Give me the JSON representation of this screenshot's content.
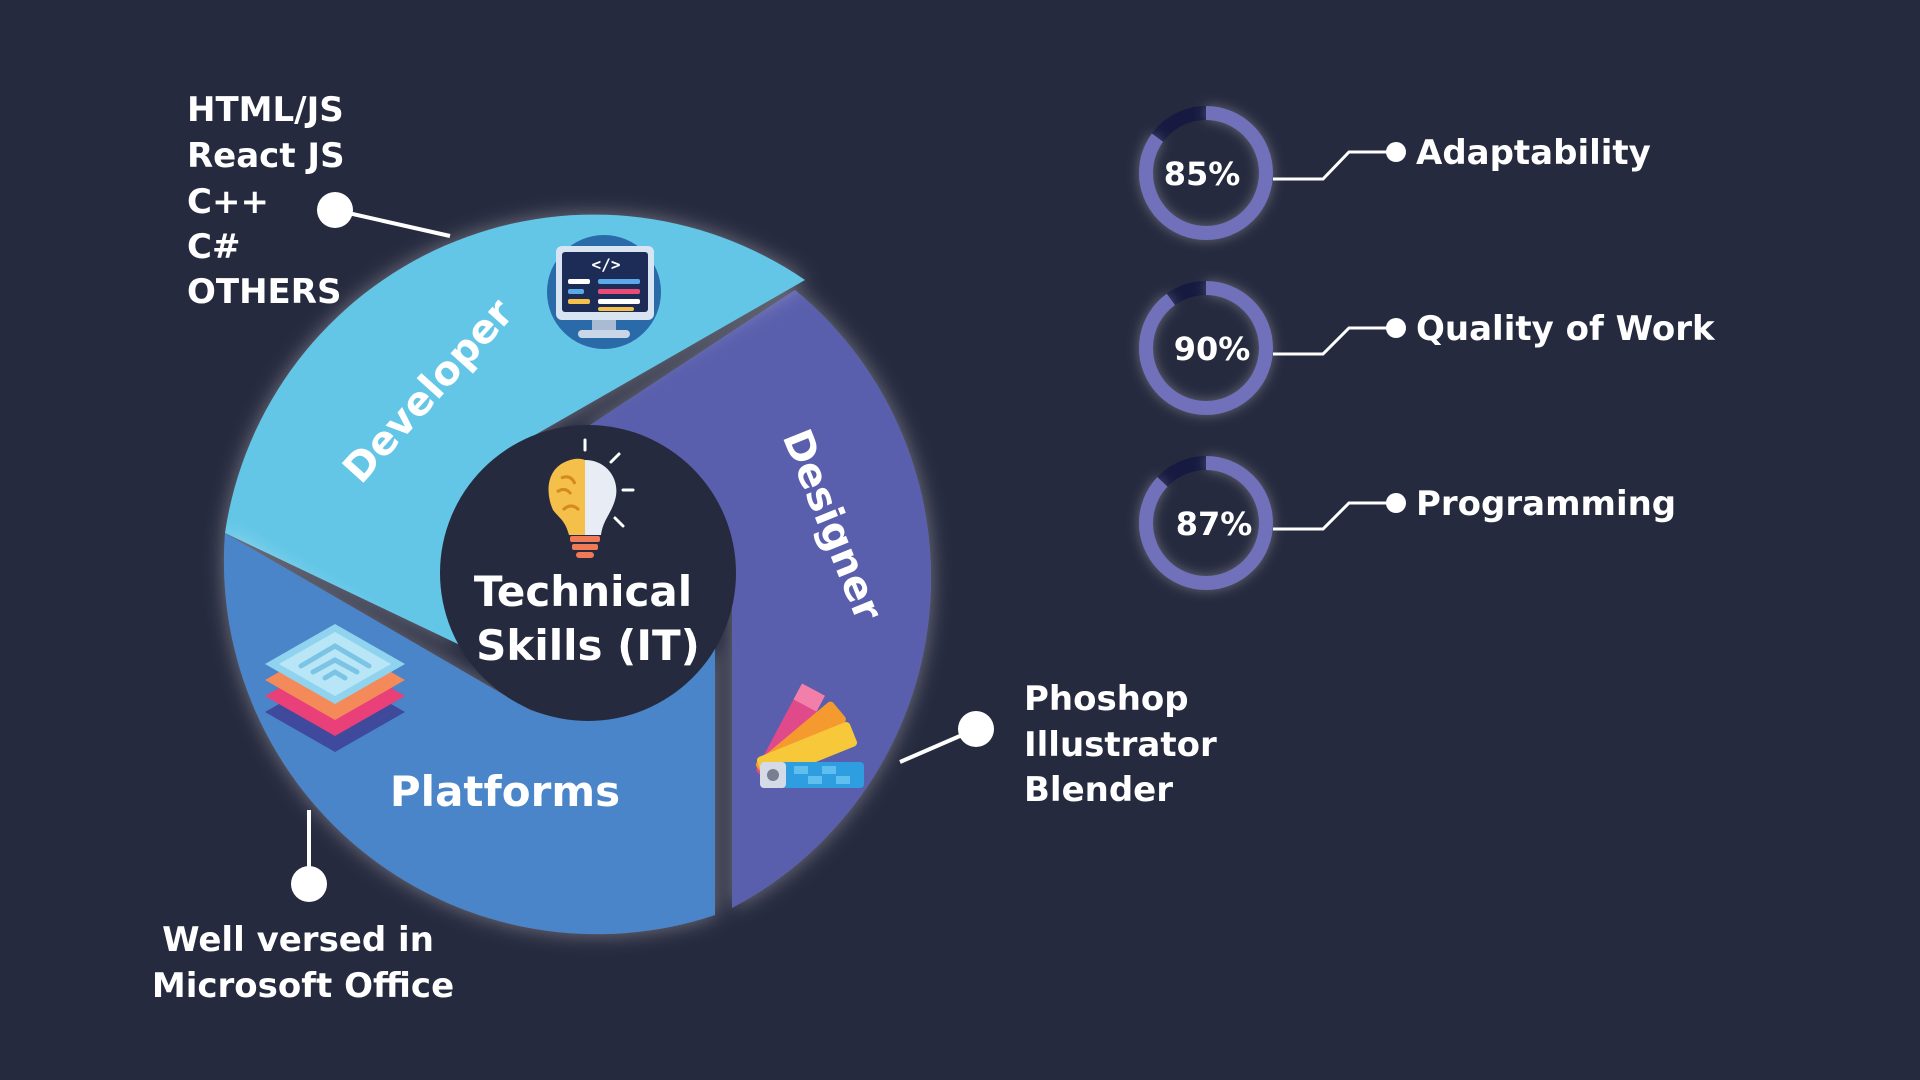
{
  "center": {
    "line1": "Technical",
    "line2": "Skills (IT)",
    "icon": "lightbulb-brain-icon"
  },
  "segments": [
    {
      "id": "developer",
      "label": "Developer",
      "color": "#63c6e7",
      "icon": "code-monitor-icon",
      "details": [
        "HTML/JS",
        "React JS",
        "C++",
        "C#",
        "OTHERS"
      ]
    },
    {
      "id": "designer",
      "label": "Designer",
      "color": "#5a5fad",
      "icon": "color-palette-icon",
      "details": [
        "Phoshop",
        "Illustrator",
        "Blender"
      ]
    },
    {
      "id": "platforms",
      "label": "Platforms",
      "color": "#4a85c8",
      "icon": "layers-icon",
      "details": [
        "Well versed in",
        "Microsoft Office"
      ]
    }
  ],
  "skills": [
    {
      "label": "Adaptability",
      "value": 85,
      "display": "85%"
    },
    {
      "label": "Quality of Work",
      "value": 90,
      "display": "90%"
    },
    {
      "label": "Programming",
      "value": 87,
      "display": "87%"
    }
  ],
  "colors": {
    "background": "#262a3e",
    "ring_fill": "#7070bb",
    "ring_track": "#161a40",
    "accent_white": "#ffffff"
  }
}
